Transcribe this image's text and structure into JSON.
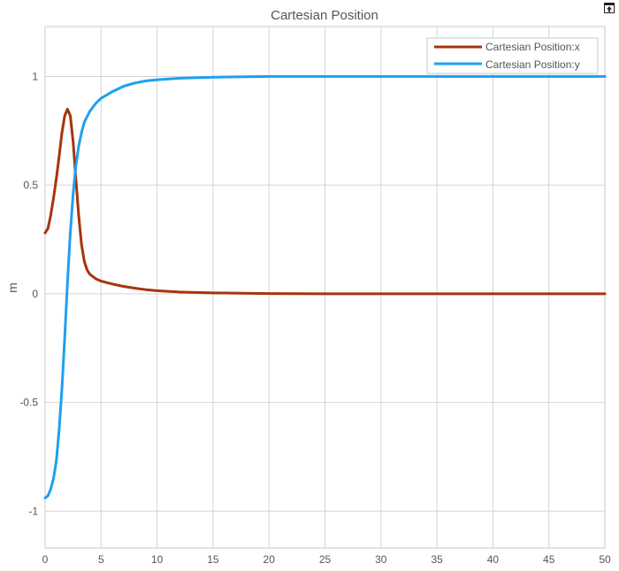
{
  "window": {
    "undock_icon": "undock-arrow-icon"
  },
  "chart_data": {
    "type": "line",
    "title": "Cartesian Position",
    "xlabel": "",
    "ylabel": "m",
    "xlim": [
      0,
      50
    ],
    "ylim": [
      -1.17,
      1.23
    ],
    "x_ticks": [
      0,
      5,
      10,
      15,
      20,
      25,
      30,
      35,
      40,
      45,
      50
    ],
    "x_tick_labels": [
      "0",
      "5",
      "10",
      "15",
      "20",
      "25",
      "30",
      "35",
      "40",
      "45",
      "50"
    ],
    "y_ticks": [
      -1,
      -0.5,
      0,
      0.5,
      1
    ],
    "y_tick_labels": [
      "-1",
      "-0.5",
      "0",
      "0.5",
      "1"
    ],
    "grid": true,
    "legend_position": "top-right",
    "series": [
      {
        "name": "Cartesian Position:x",
        "color": "#a5350b",
        "points": [
          [
            0,
            0.28
          ],
          [
            0.25,
            0.3
          ],
          [
            0.5,
            0.36
          ],
          [
            0.75,
            0.44
          ],
          [
            1.0,
            0.53
          ],
          [
            1.25,
            0.63
          ],
          [
            1.5,
            0.74
          ],
          [
            1.75,
            0.82
          ],
          [
            2.0,
            0.85
          ],
          [
            2.25,
            0.82
          ],
          [
            2.5,
            0.7
          ],
          [
            2.75,
            0.53
          ],
          [
            3.0,
            0.36
          ],
          [
            3.25,
            0.23
          ],
          [
            3.5,
            0.15
          ],
          [
            3.75,
            0.11
          ],
          [
            4.0,
            0.09
          ],
          [
            4.5,
            0.07
          ],
          [
            5.0,
            0.058
          ],
          [
            6,
            0.045
          ],
          [
            7,
            0.034
          ],
          [
            8,
            0.026
          ],
          [
            9,
            0.019
          ],
          [
            10,
            0.014
          ],
          [
            12,
            0.008
          ],
          [
            15,
            0.004
          ],
          [
            20,
            0.001
          ],
          [
            25,
            0
          ],
          [
            30,
            0
          ],
          [
            40,
            0
          ],
          [
            50,
            0
          ]
        ]
      },
      {
        "name": "Cartesian Position:y",
        "color": "#1ea0f0",
        "points": [
          [
            0,
            -0.94
          ],
          [
            0.25,
            -0.93
          ],
          [
            0.5,
            -0.9
          ],
          [
            0.75,
            -0.85
          ],
          [
            1.0,
            -0.77
          ],
          [
            1.25,
            -0.63
          ],
          [
            1.5,
            -0.44
          ],
          [
            1.75,
            -0.2
          ],
          [
            2.0,
            0.05
          ],
          [
            2.25,
            0.28
          ],
          [
            2.5,
            0.46
          ],
          [
            2.75,
            0.59
          ],
          [
            3.0,
            0.68
          ],
          [
            3.25,
            0.74
          ],
          [
            3.5,
            0.79
          ],
          [
            4.0,
            0.84
          ],
          [
            4.5,
            0.875
          ],
          [
            5.0,
            0.9
          ],
          [
            6,
            0.93
          ],
          [
            7,
            0.955
          ],
          [
            8,
            0.97
          ],
          [
            9,
            0.98
          ],
          [
            10,
            0.985
          ],
          [
            12,
            0.992
          ],
          [
            15,
            0.997
          ],
          [
            20,
            1.0
          ],
          [
            30,
            1.0
          ],
          [
            40,
            1.0
          ],
          [
            50,
            1.0
          ]
        ]
      }
    ]
  }
}
